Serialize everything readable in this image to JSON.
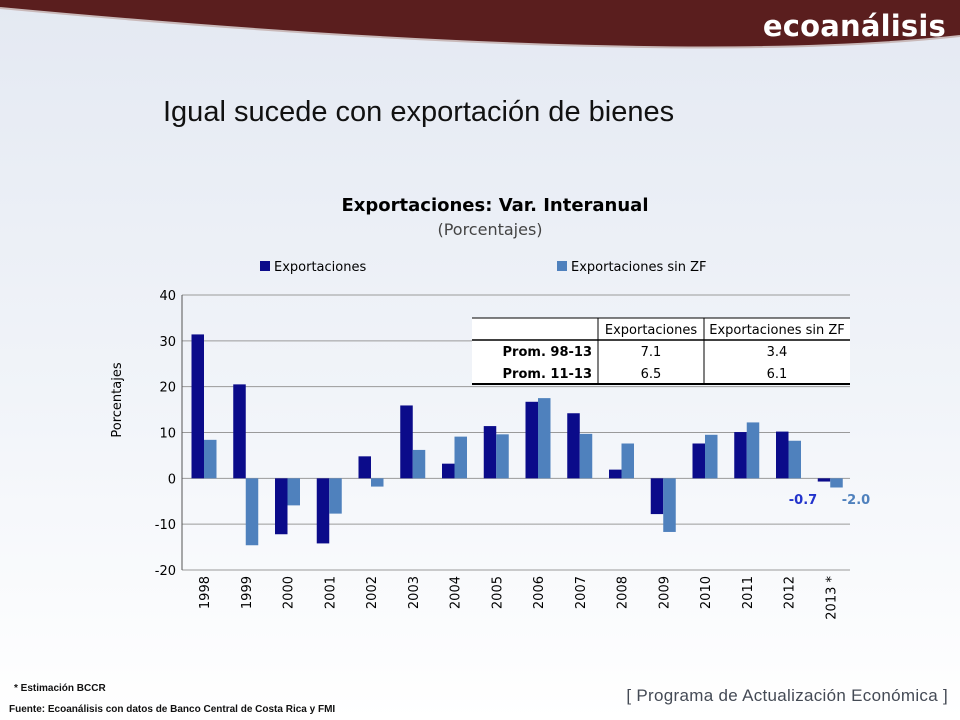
{
  "brand": "ecoanálisis",
  "slide_title": "Igual sucede con exportación de bienes",
  "chart_data": {
    "type": "bar",
    "title": "Exportaciones: Var. Interanual",
    "subtitle": "(Porcentajes)",
    "ylabel": "Porcentajes",
    "xlabel": "",
    "ylim": [
      -20,
      40
    ],
    "yticks": [
      -20,
      -10,
      0,
      10,
      20,
      30,
      40
    ],
    "ytick_labels": [
      "-20",
      "-10",
      "0",
      "10",
      "20",
      "30",
      "40"
    ],
    "grid": true,
    "legend_position": "top",
    "categories": [
      "1998",
      "1999",
      "2000",
      "2001",
      "2002",
      "2003",
      "2004",
      "2005",
      "2006",
      "2007",
      "2008",
      "2009",
      "2010",
      "2011",
      "2012",
      "2013 *"
    ],
    "series": [
      {
        "name": "Exportaciones",
        "color": "#0b0b8a",
        "values": [
          31.4,
          20.5,
          -12.2,
          -14.2,
          4.8,
          15.9,
          3.2,
          11.4,
          16.7,
          14.2,
          1.9,
          -7.8,
          7.6,
          10.1,
          10.2,
          -0.7
        ]
      },
      {
        "name": "Exportaciones sin ZF",
        "color": "#4f81bd",
        "values": [
          8.4,
          -14.6,
          -5.9,
          -7.7,
          -1.8,
          6.2,
          9.1,
          9.6,
          17.5,
          9.7,
          7.6,
          -11.7,
          9.5,
          12.2,
          8.2,
          -2.0
        ]
      }
    ],
    "annotations": [
      {
        "text": "-0.7",
        "color": "#2233cc"
      },
      {
        "text": "-2.0",
        "color": "#4f81bd"
      }
    ],
    "inset_table": {
      "headers": [
        "",
        "Exportaciones",
        "Exportaciones sin ZF"
      ],
      "rows": [
        [
          "Prom. 98-13",
          "7.1",
          "3.4"
        ],
        [
          "Prom. 11-13",
          "6.5",
          "6.1"
        ]
      ]
    }
  },
  "footnote": "* Estimación BCCR",
  "source": "Fuente: Ecoanálisis con datos de Banco Central de Costa Rica y FMI",
  "program_label": "[ Programa de Actualización Económica ]",
  "colors": {
    "banner": "#5a1e1e",
    "accent": "#0b0b8a",
    "secondary": "#4f81bd"
  }
}
